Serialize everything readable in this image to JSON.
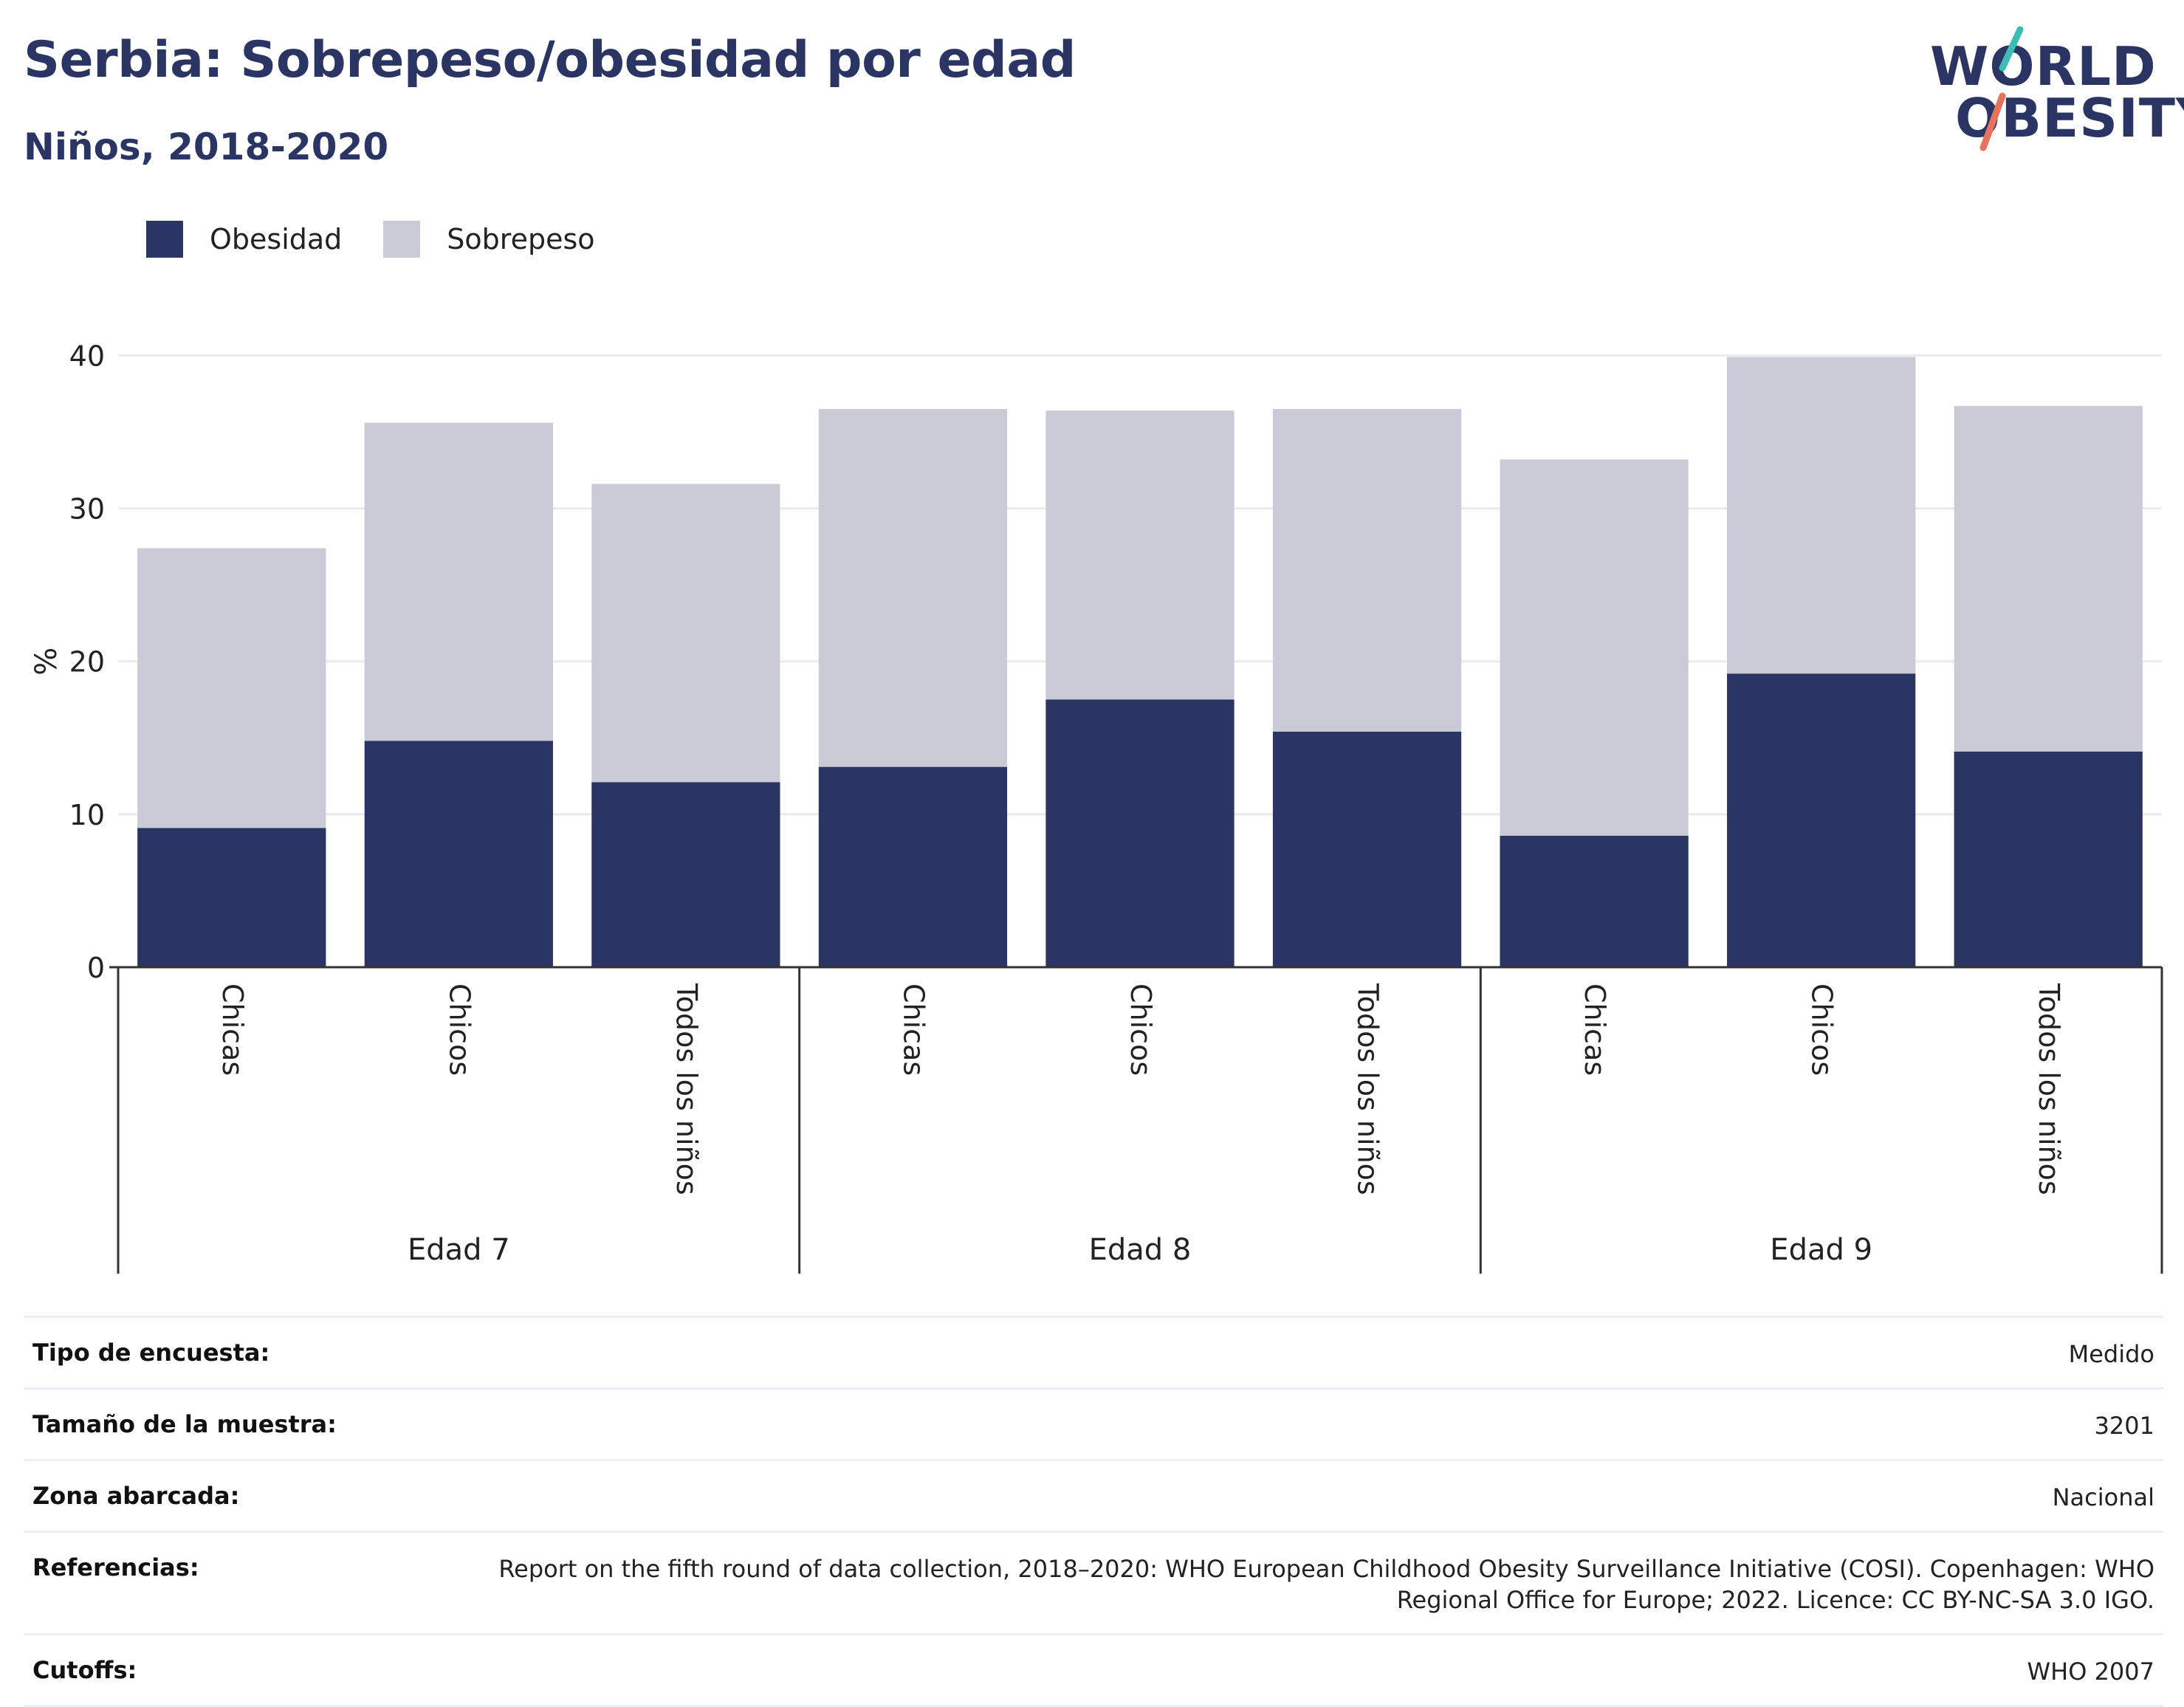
{
  "title": "Serbia: Sobrepeso/obesidad por edad",
  "subtitle": "Niños, 2018-2020",
  "logo": {
    "line1": "WORLD",
    "line2": "OBESITY"
  },
  "legend": [
    {
      "label": "Obesidad",
      "color": "#2b3563"
    },
    {
      "label": "Sobrepeso",
      "color": "#cacbd7"
    }
  ],
  "chart_data": {
    "type": "bar",
    "stacked": true,
    "ylabel": "%",
    "ylim": [
      0,
      42
    ],
    "yticks": [
      0,
      10,
      20,
      30,
      40
    ],
    "grid": true,
    "legend_position": "top-left",
    "groups": [
      {
        "label": "Edad 7",
        "categories": [
          "Chicas",
          "Chicos",
          "Todos los niños"
        ]
      },
      {
        "label": "Edad 8",
        "categories": [
          "Chicas",
          "Chicos",
          "Todos los niños"
        ]
      },
      {
        "label": "Edad 9",
        "categories": [
          "Chicas",
          "Chicos",
          "Todos los niños"
        ]
      }
    ],
    "series": [
      {
        "name": "Obesidad",
        "color": "#2b3563",
        "values": [
          9.1,
          14.8,
          12.1,
          13.1,
          17.5,
          15.4,
          8.6,
          19.2,
          14.1
        ]
      },
      {
        "name": "Sobrepeso",
        "color": "#cacbd7",
        "values": [
          18.3,
          20.8,
          19.5,
          23.4,
          18.9,
          21.1,
          24.6,
          20.7,
          22.6
        ]
      }
    ]
  },
  "meta": [
    {
      "label": "Tipo de encuesta:",
      "value": "Medido"
    },
    {
      "label": "Tamaño de la muestra:",
      "value": "3201"
    },
    {
      "label": "Zona abarcada:",
      "value": "Nacional"
    },
    {
      "label": "Referencias:",
      "value": "Report on the fifth round of data collection, 2018–2020: WHO European Childhood Obesity Surveillance Initiative (COSI). Copenhagen: WHO Regional Office for Europe; 2022. Licence: CC BY-NC-SA 3.0 IGO."
    },
    {
      "label": "Cutoffs:",
      "value": "WHO 2007"
    }
  ]
}
